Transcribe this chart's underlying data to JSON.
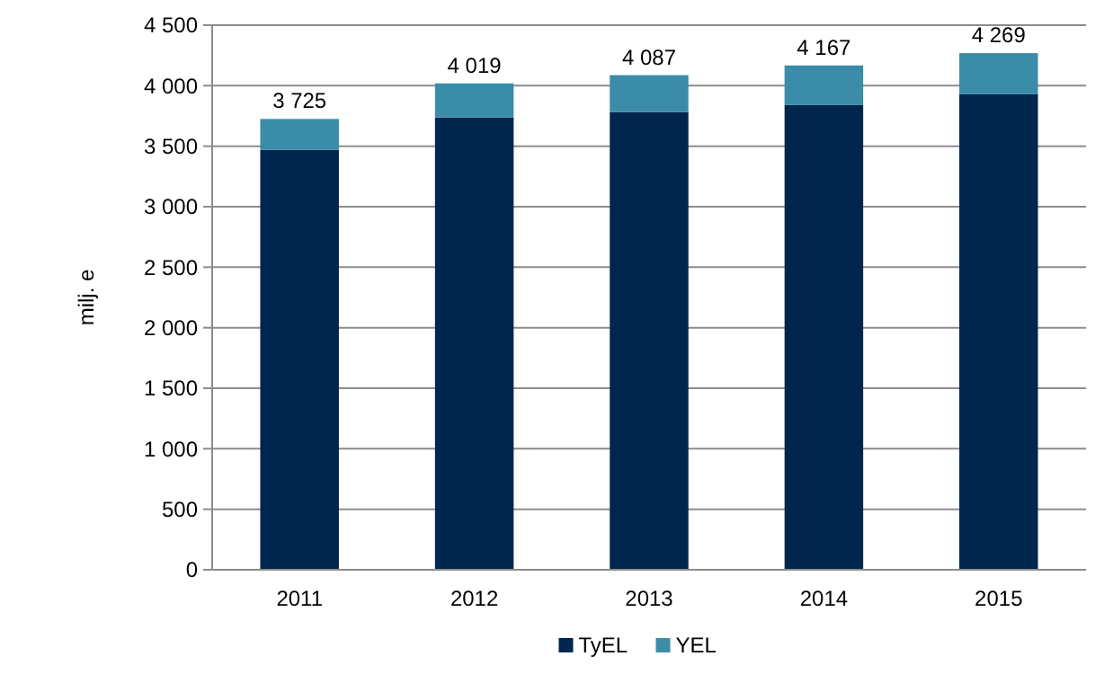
{
  "chart_data": {
    "type": "bar",
    "stacked": true,
    "ylabel": "milj. e",
    "categories": [
      "2011",
      "2012",
      "2013",
      "2014",
      "2015"
    ],
    "series": [
      {
        "name": "TyEL",
        "color": "#00264d",
        "values": [
          3470,
          3737,
          3781,
          3840,
          3929
        ]
      },
      {
        "name": "YEL",
        "color": "#3a8ca9",
        "values": [
          255,
          282,
          306,
          327,
          340
        ]
      }
    ],
    "totals": [
      "3 725",
      "4 019",
      "4 087",
      "4 167",
      "4 269"
    ],
    "ylim": [
      0,
      4500
    ],
    "yticks": [
      0,
      {
        "value": 500,
        "label": "500"
      },
      {
        "value": 1000,
        "label": "1 000"
      },
      {
        "value": 1500,
        "label": "1 500"
      },
      {
        "value": 2000,
        "label": "2 000"
      },
      {
        "value": 2500,
        "label": "2 500"
      },
      {
        "value": 3000,
        "label": "3 000"
      },
      {
        "value": 3500,
        "label": "3 500"
      },
      {
        "value": 4000,
        "label": "4 000"
      },
      {
        "value": 4500,
        "label": "4 500"
      }
    ],
    "grid": "y",
    "legend": "bottom"
  }
}
